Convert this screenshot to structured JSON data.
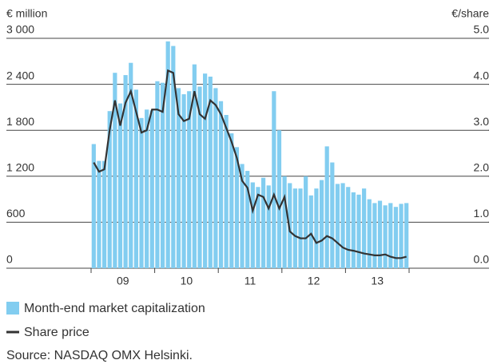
{
  "chart_data": {
    "type": "bar_line",
    "y_label": "€ million",
    "y2_label": "€/share",
    "year_labels": [
      "09",
      "10",
      "11",
      "12",
      "13"
    ],
    "categories": [
      null,
      null,
      null,
      null,
      null,
      null,
      null,
      null,
      null,
      null,
      null,
      null,
      null,
      null,
      null,
      null,
      null,
      null,
      null,
      null,
      null,
      null,
      null,
      null,
      null,
      null,
      null,
      null,
      null,
      null,
      null,
      null,
      null,
      null,
      null,
      null,
      null,
      null,
      null,
      null,
      null,
      null,
      null,
      null,
      null,
      null,
      null,
      null,
      null,
      null,
      null,
      null,
      null,
      null,
      null,
      null,
      null,
      null,
      null,
      null
    ],
    "series": [
      {
        "name": "Month-end market capitalization",
        "color": "#82cdf0",
        "kind": "bar",
        "values": [
          1620,
          1400,
          1400,
          2050,
          2550,
          2150,
          2520,
          2680,
          2330,
          1960,
          2070,
          2060,
          2440,
          2420,
          2960,
          2900,
          2350,
          2270,
          2310,
          2660,
          2370,
          2540,
          2500,
          2350,
          2180,
          2000,
          1760,
          1580,
          1360,
          1270,
          1120,
          1060,
          1180,
          1080,
          2310,
          1800,
          1200,
          1110,
          1040,
          1040,
          1200,
          950,
          1040,
          1150,
          1590,
          1380,
          1100,
          1110,
          1060,
          990,
          960,
          1040,
          900,
          850,
          880,
          820,
          850,
          800,
          840,
          850
        ]
      },
      {
        "name": "Share price",
        "color": "#333333",
        "kind": "line",
        "axis": "y2",
        "values": [
          2.3,
          2.1,
          2.15,
          3.0,
          3.65,
          3.1,
          3.6,
          3.85,
          3.4,
          2.95,
          3.0,
          3.45,
          3.45,
          3.4,
          4.3,
          4.25,
          3.35,
          3.2,
          3.25,
          3.85,
          3.35,
          3.25,
          3.65,
          3.55,
          3.35,
          3.05,
          2.75,
          2.4,
          1.9,
          1.75,
          1.25,
          1.6,
          1.55,
          1.3,
          1.6,
          1.3,
          1.55,
          0.8,
          0.7,
          0.65,
          0.65,
          0.75,
          0.55,
          0.6,
          0.7,
          0.65,
          0.55,
          0.45,
          0.4,
          0.38,
          0.35,
          0.32,
          0.3,
          0.28,
          0.28,
          0.3,
          0.25,
          0.22,
          0.22,
          0.25
        ]
      }
    ],
    "ylim": [
      0,
      3000
    ],
    "yticks": [
      0,
      600,
      {
        "value": 1200,
        "label": "1 200"
      },
      {
        "value": 1800,
        "label": "1 800"
      },
      {
        "value": 2400,
        "label": "2 400"
      },
      {
        "value": 3000,
        "label": "3 000"
      }
    ],
    "y2lim": [
      0,
      5
    ],
    "y2ticks": [
      {
        "value": 0,
        "label": "0.0"
      },
      {
        "value": 1,
        "label": "1.0"
      },
      {
        "value": 2,
        "label": "2.0"
      },
      {
        "value": 3,
        "label": "3.0"
      },
      {
        "value": 4,
        "label": "4.0"
      },
      {
        "value": 5,
        "label": "5.0"
      }
    ],
    "grid": true,
    "source": "Source: NASDAQ OMX Helsinki."
  }
}
